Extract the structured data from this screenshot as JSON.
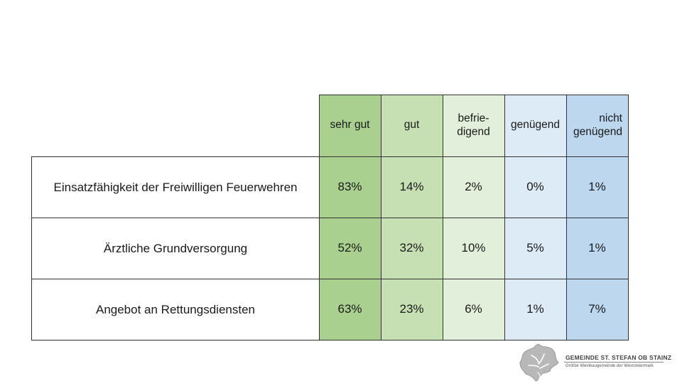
{
  "table": {
    "headers": [
      "sehr gut",
      "gut",
      "befrie-\ndigend",
      "genügend",
      "nicht\ngenügend"
    ],
    "rows": [
      {
        "label": "Einsatzfähigkeit der Freiwilligen Feuerwehren",
        "values": [
          "83%",
          "14%",
          "2%",
          "0%",
          "1%"
        ]
      },
      {
        "label": "Ärztliche Grundversorgung",
        "values": [
          "52%",
          "32%",
          "10%",
          "5%",
          "1%"
        ]
      },
      {
        "label": "Angebot an Rettungsdiensten",
        "values": [
          "63%",
          "23%",
          "6%",
          "1%",
          "7%"
        ]
      }
    ]
  },
  "logo": {
    "title": "GEMEINDE  ST. STEFAN OB STAINZ",
    "subtitle": "Größte Weinbaugemeinde der Weststeiermark"
  },
  "colors": {
    "sehr_gut": "#a9d08e",
    "gut": "#c6e0b4",
    "befriedigend": "#e2efda",
    "genuegend": "#ddebf7",
    "nicht_genuegend": "#bdd7ee"
  }
}
